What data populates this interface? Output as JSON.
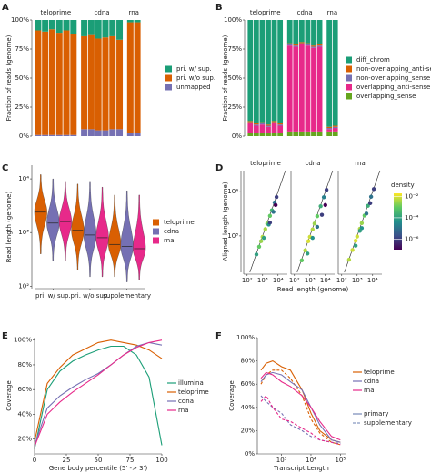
{
  "chart_data": [
    {
      "panel": "A",
      "type": "bar",
      "stacked": true,
      "ylabel": "Fraction of reads (genome)",
      "ylim": [
        0,
        100
      ],
      "yticks": [
        {
          "value": 0,
          "label": "0%"
        },
        {
          "value": 25,
          "label": "25%"
        },
        {
          "value": 50,
          "label": "50%"
        },
        {
          "value": 75,
          "label": "75%"
        },
        {
          "value": 100,
          "label": "100%"
        }
      ],
      "series": [
        {
          "name": "pri. w/ sup.",
          "color": "#1b9e77"
        },
        {
          "name": "pri. w/o sup.",
          "color": "#d95f02"
        },
        {
          "name": "unmapped",
          "color": "#7570b3"
        }
      ],
      "facets": [
        {
          "name": "teloprime",
          "values": [
            [
              9,
              90,
              1
            ],
            [
              10,
              89,
              1
            ],
            [
              8,
              91,
              1
            ],
            [
              11,
              88,
              1
            ],
            [
              9,
              90,
              1
            ],
            [
              12,
              87,
              1
            ]
          ]
        },
        {
          "name": "cdna",
          "values": [
            [
              14,
              80,
              6
            ],
            [
              13,
              81,
              6
            ],
            [
              16,
              79,
              5
            ],
            [
              15,
              80,
              5
            ],
            [
              14,
              80,
              6
            ],
            [
              17,
              77,
              6
            ]
          ]
        },
        {
          "name": "rna",
          "values": [
            [
              2,
              95,
              3
            ],
            [
              2,
              95,
              3
            ]
          ]
        }
      ]
    },
    {
      "panel": "B",
      "type": "bar",
      "stacked": true,
      "ylabel": "Fraction of reads (genome)",
      "ylim": [
        0,
        100
      ],
      "yticks": [
        {
          "value": 0,
          "label": "0%"
        },
        {
          "value": 25,
          "label": "25%"
        },
        {
          "value": 50,
          "label": "50%"
        },
        {
          "value": 75,
          "label": "75%"
        },
        {
          "value": 100,
          "label": "100%"
        }
      ],
      "series": [
        {
          "name": "diff_chrom",
          "color": "#1b9e77"
        },
        {
          "name": "non-overlapping_anti-sense",
          "color": "#d95f02"
        },
        {
          "name": "non-overlapping_sense",
          "color": "#7570b3"
        },
        {
          "name": "overlapping_anti-sense",
          "color": "#e7298a"
        },
        {
          "name": "overlapping_sense",
          "color": "#66a61e"
        }
      ],
      "facets": [
        {
          "name": "teloprime",
          "values": [
            [
              87,
              1,
              1,
              8,
              3
            ],
            [
              89,
              1,
              1,
              6,
              3
            ],
            [
              88,
              1,
              1,
              7,
              3
            ],
            [
              90,
              1,
              1,
              5,
              3
            ],
            [
              87,
              1,
              1,
              8,
              3
            ],
            [
              89,
              1,
              1,
              6,
              3
            ]
          ]
        },
        {
          "name": "cdna",
          "values": [
            [
              20,
              1,
              1,
              74,
              4
            ],
            [
              21,
              1,
              1,
              73,
              4
            ],
            [
              19,
              1,
              1,
              75,
              4
            ],
            [
              20,
              1,
              1,
              74,
              4
            ],
            [
              22,
              1,
              1,
              72,
              4
            ],
            [
              21,
              1,
              1,
              73,
              4
            ]
          ]
        },
        {
          "name": "rna",
          "values": [
            [
              92,
              1,
              1,
              2,
              4
            ],
            [
              91,
              1,
              1,
              3,
              4
            ]
          ]
        }
      ]
    },
    {
      "panel": "C",
      "type": "violin",
      "ylabel": "Read length (genome)",
      "ylog": true,
      "ylim": [
        90,
        18000
      ],
      "yticks": [
        {
          "value": 100,
          "label": "10²"
        },
        {
          "value": 1000,
          "label": "10³"
        },
        {
          "value": 10000,
          "label": "10⁴"
        }
      ],
      "categories": [
        "pri. w/ sup.",
        "pri. w/o sup.",
        "supplementary"
      ],
      "series": [
        {
          "name": "teloprime",
          "color": "#d95f02",
          "values": [
            2400,
            1100,
            600
          ],
          "min": [
            400,
            200,
            150
          ],
          "max": [
            12000,
            8000,
            5000
          ]
        },
        {
          "name": "cdna",
          "color": "#7570b3",
          "values": [
            1500,
            900,
            550
          ],
          "min": [
            300,
            150,
            120
          ],
          "max": [
            10000,
            9000,
            6000
          ]
        },
        {
          "name": "rna",
          "color": "#e7298a",
          "values": [
            1600,
            800,
            500
          ],
          "min": [
            300,
            150,
            130
          ],
          "max": [
            9000,
            7000,
            5000
          ]
        }
      ]
    },
    {
      "panel": "D",
      "type": "scatter",
      "xlabel": "Read length (genome)",
      "ylabel": "Aligned length (genome)",
      "xlog": true,
      "ylog": true,
      "xlim": [
        60,
        40000
      ],
      "ylim": [
        150,
        30000
      ],
      "xticks": [
        {
          "value": 100,
          "label": "10²"
        },
        {
          "value": 1000,
          "label": "10³"
        },
        {
          "value": 10000,
          "label": "10⁴"
        }
      ],
      "yticks": [
        {
          "value": 1000,
          "label": "10³"
        },
        {
          "value": 10000,
          "label": "10⁴"
        }
      ],
      "colorbar": {
        "title": "density",
        "lim": [
          1e-07,
          0.02
        ],
        "ticks": [
          {
            "value": 0.01,
            "label": "10⁻²"
          },
          {
            "value": 0.0001,
            "label": "10⁻⁴"
          },
          {
            "value": 1e-06,
            "label": "10⁻⁶"
          }
        ]
      },
      "facets": [
        {
          "name": "teloprime",
          "x": [
            400,
            600,
            800,
            1000,
            1500,
            2000,
            3000,
            4000,
            6000,
            8000,
            1200,
            2500,
            5000,
            3000,
            7000
          ],
          "y": [
            380,
            570,
            760,
            950,
            1420,
            1900,
            2850,
            3800,
            5700,
            7600,
            900,
            1800,
            3500,
            2000,
            5000
          ],
          "density": [
            0.0001,
            0.001,
            0.003,
            0.005,
            0.004,
            0.002,
            0.001,
            0.0003,
            1e-05,
            1e-06,
            0.0001,
            5e-05,
            1e-05,
            1e-06,
            1e-07
          ]
        },
        {
          "name": "cdna",
          "x": [
            300,
            500,
            800,
            1000,
            1500,
            2000,
            3000,
            5000,
            8000,
            12000,
            700,
            1500,
            3000,
            6000,
            10000
          ],
          "y": [
            280,
            470,
            760,
            950,
            1400,
            1900,
            2800,
            4700,
            7500,
            11000,
            400,
            900,
            1600,
            3000,
            5000
          ],
          "density": [
            0.001,
            0.005,
            0.01,
            0.008,
            0.005,
            0.003,
            0.001,
            0.0002,
            2e-05,
            1e-06,
            0.0001,
            5e-05,
            1e-05,
            1e-06,
            1e-07
          ]
        },
        {
          "name": "rna",
          "x": [
            300,
            500,
            800,
            1000,
            1500,
            2000,
            3000,
            5000,
            8000,
            12000,
            800,
            2000,
            4000,
            7000,
            1500
          ],
          "y": [
            290,
            480,
            780,
            970,
            1450,
            1950,
            2900,
            4800,
            7700,
            11500,
            600,
            1500,
            3200,
            5500,
            1300
          ],
          "density": [
            0.005,
            0.008,
            0.01,
            0.008,
            0.005,
            0.003,
            0.001,
            0.0002,
            1e-05,
            1e-06,
            0.0001,
            5e-05,
            1e-05,
            1e-06,
            0.0001
          ]
        }
      ]
    },
    {
      "panel": "E",
      "type": "line",
      "xlabel": "Gene body percentile (5' -> 3')",
      "ylabel": "Coverage",
      "xlim": [
        0,
        100
      ],
      "xticks": [
        0,
        25,
        50,
        75,
        100
      ],
      "ylim": [
        8,
        102
      ],
      "yticks": [
        {
          "value": 20,
          "label": "20%"
        },
        {
          "value": 40,
          "label": "40%"
        },
        {
          "value": 60,
          "label": "60%"
        },
        {
          "value": 80,
          "label": "80%"
        },
        {
          "value": 100,
          "label": "100%"
        }
      ],
      "x": [
        0,
        10,
        20,
        30,
        40,
        50,
        60,
        70,
        80,
        90,
        100
      ],
      "series": [
        {
          "name": "illumina",
          "color": "#1b9e77",
          "values": [
            12,
            60,
            75,
            83,
            88,
            92,
            95,
            95,
            88,
            70,
            15
          ]
        },
        {
          "name": "teloprime",
          "color": "#d95f02",
          "values": [
            18,
            65,
            78,
            88,
            93,
            98,
            100,
            98,
            96,
            92,
            85
          ]
        },
        {
          "name": "cdna",
          "color": "#7570b3",
          "values": [
            15,
            45,
            55,
            62,
            68,
            73,
            80,
            88,
            95,
            98,
            96
          ]
        },
        {
          "name": "rna",
          "color": "#e7298a",
          "values": [
            14,
            40,
            50,
            58,
            65,
            72,
            80,
            88,
            94,
            98,
            100
          ]
        }
      ]
    },
    {
      "panel": "F",
      "type": "line",
      "xlabel": "Transcript Length",
      "ylabel": "Coverage",
      "xlog": true,
      "xlim": [
        150,
        150000
      ],
      "xticks": [
        {
          "value": 1000,
          "label": "10³"
        },
        {
          "value": 10000,
          "label": "10⁴"
        },
        {
          "value": 100000,
          "label": "10⁵"
        }
      ],
      "ylim": [
        0,
        100
      ],
      "yticks": [
        {
          "value": 0,
          "label": "0%"
        },
        {
          "value": 20,
          "label": "20%"
        },
        {
          "value": 40,
          "label": "40%"
        },
        {
          "value": 60,
          "label": "60%"
        },
        {
          "value": 80,
          "label": "80%"
        },
        {
          "value": 100,
          "label": "100%"
        }
      ],
      "x": [
        200,
        300,
        500,
        1000,
        2000,
        5000,
        10000,
        20000,
        50000,
        100000
      ],
      "linetypes": [
        {
          "name": "primary",
          "dash": "none"
        },
        {
          "name": "supplementary",
          "dash": "3 2"
        }
      ],
      "series": [
        {
          "name": "teloprime",
          "color": "#d95f02",
          "lines": [
            [
              72,
              78,
              80,
              75,
              72,
              55,
              35,
              20,
              12,
              10
            ],
            [
              60,
              68,
              72,
              72,
              65,
              50,
              30,
              18,
              10,
              8
            ]
          ]
        },
        {
          "name": "cdna",
          "color": "#7570b3",
          "lines": [
            [
              62,
              68,
              70,
              68,
              62,
              55,
              40,
              25,
              12,
              10
            ],
            [
              50,
              45,
              40,
              35,
              25,
              20,
              15,
              12,
              10,
              9
            ]
          ]
        },
        {
          "name": "rna",
          "color": "#e7298a",
          "lines": [
            [
              65,
              70,
              68,
              62,
              58,
              50,
              40,
              28,
              15,
              12
            ],
            [
              45,
              50,
              40,
              30,
              28,
              22,
              18,
              12,
              10,
              8
            ]
          ]
        }
      ]
    }
  ]
}
